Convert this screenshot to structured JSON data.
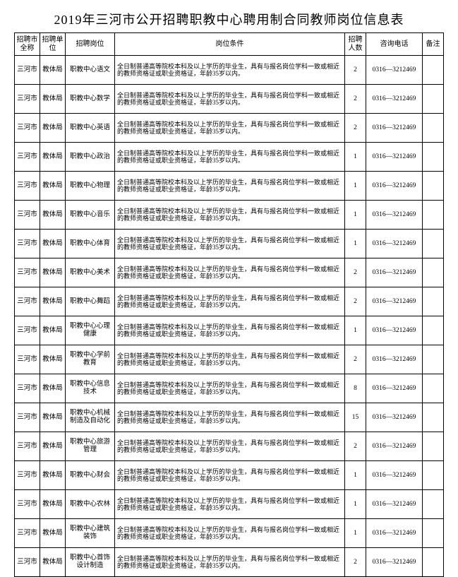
{
  "title": "2019年三河市公开招聘职教中心聘用制合同教师岗位信息表",
  "headers": {
    "c1": "招聘市全称",
    "c2": "招聘单位",
    "c3": "招聘岗位",
    "c4": "岗位条件",
    "c5": "招聘人数",
    "c6": "咨询电话",
    "c7": "备注"
  },
  "common": {
    "city": "三河市",
    "unit": "教体局",
    "cond": "全日制普通高等院校本科及以上学历的毕业生，具有与报名岗位学科一致或相近的教师资格证或职业资格证，年龄35岁以内。",
    "phone": "0316—3212469",
    "remark": ""
  },
  "rows": [
    {
      "pos": "职教中心语文",
      "n": "2"
    },
    {
      "pos": "职教中心数学",
      "n": "2"
    },
    {
      "pos": "职教中心英语",
      "n": "2"
    },
    {
      "pos": "职教中心政治",
      "n": "1"
    },
    {
      "pos": "职教中心物理",
      "n": "1"
    },
    {
      "pos": "职教中心音乐",
      "n": "1"
    },
    {
      "pos": "职教中心体育",
      "n": "1"
    },
    {
      "pos": "职教中心美术",
      "n": "2"
    },
    {
      "pos": "职教中心舞蹈",
      "n": "2"
    },
    {
      "pos": "职教中心心理健康",
      "n": "1"
    },
    {
      "pos": "职教中心学前教育",
      "n": "2"
    },
    {
      "pos": "职教中心信息技术",
      "n": "8"
    },
    {
      "pos": "职教中心机械制造及自动化",
      "n": "15"
    },
    {
      "pos": "职教中心旅游管理",
      "n": "2"
    },
    {
      "pos": "职教中心财会",
      "n": "1"
    },
    {
      "pos": "职教中心农林",
      "n": "1"
    },
    {
      "pos": "职教中心建筑装饰",
      "n": "1"
    },
    {
      "pos": "职教中心首饰设计制造",
      "n": "2"
    }
  ]
}
